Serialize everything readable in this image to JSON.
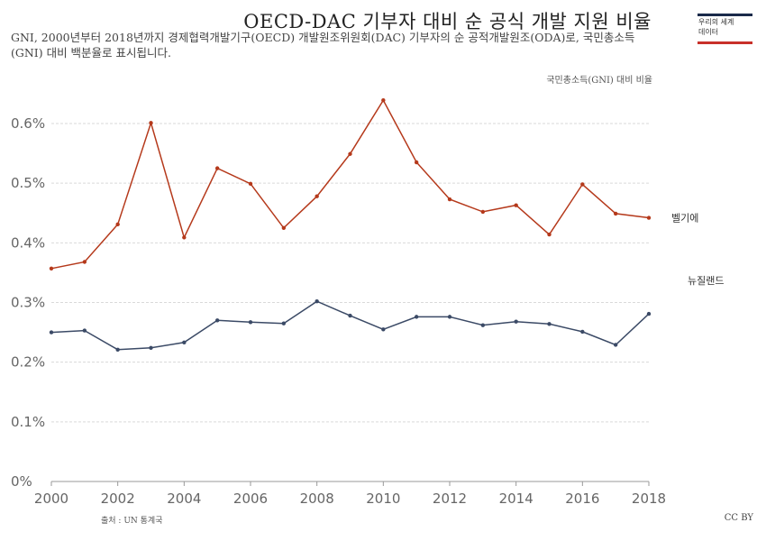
{
  "title": "OECD-DAC 기부자 대비 순 공식 개발 지원 비율",
  "subtitle": "GNI, 2000년부터 2018년까지 경제협력개발기구(OECD) 개발원조위원회(DAC) 기부자의 순 공적개발원조(ODA)로, 국민총소득(GNI) 대비 백분율로 표시됩니다.",
  "logo_text": "우리의 세계\n데이터",
  "units_label": "국민총소득(GNI) 대비 비율",
  "source": "출처 : UN 통계국",
  "license": "CC BY",
  "colors": {
    "belgium": "#b5391b",
    "new_zealand": "#3b4a66",
    "grid": "#d9d9d9"
  },
  "chart_data": {
    "type": "line",
    "x": [
      2000,
      2001,
      2002,
      2003,
      2004,
      2005,
      2006,
      2007,
      2008,
      2009,
      2010,
      2011,
      2012,
      2013,
      2014,
      2015,
      2016,
      2017,
      2018
    ],
    "series": [
      {
        "name": "벨기에",
        "values": [
          0.357,
          0.368,
          0.431,
          0.601,
          0.409,
          0.525,
          0.499,
          0.425,
          0.478,
          0.549,
          0.639,
          0.535,
          0.473,
          0.452,
          0.463,
          0.414,
          0.498,
          0.449,
          0.442
        ]
      },
      {
        "name": "뉴질랜드",
        "values": [
          0.25,
          0.253,
          0.221,
          0.224,
          0.233,
          0.27,
          0.267,
          0.265,
          0.302,
          0.278,
          0.255,
          0.276,
          0.276,
          0.262,
          0.268,
          0.264,
          0.251,
          0.229,
          0.281
        ]
      }
    ],
    "yticks": [
      "0%",
      "0.1%",
      "0.2%",
      "0.3%",
      "0.4%",
      "0.5%",
      "0.6%"
    ],
    "ytick_values": [
      0,
      0.1,
      0.2,
      0.3,
      0.4,
      0.5,
      0.6
    ],
    "xticks": [
      "2000",
      "2002",
      "2004",
      "2006",
      "2008",
      "2010",
      "2012",
      "2014",
      "2016",
      "2018"
    ],
    "ylim": [
      0,
      0.6
    ],
    "xlim": [
      2000,
      2018
    ],
    "grid": true,
    "legend": "line-end labels"
  }
}
